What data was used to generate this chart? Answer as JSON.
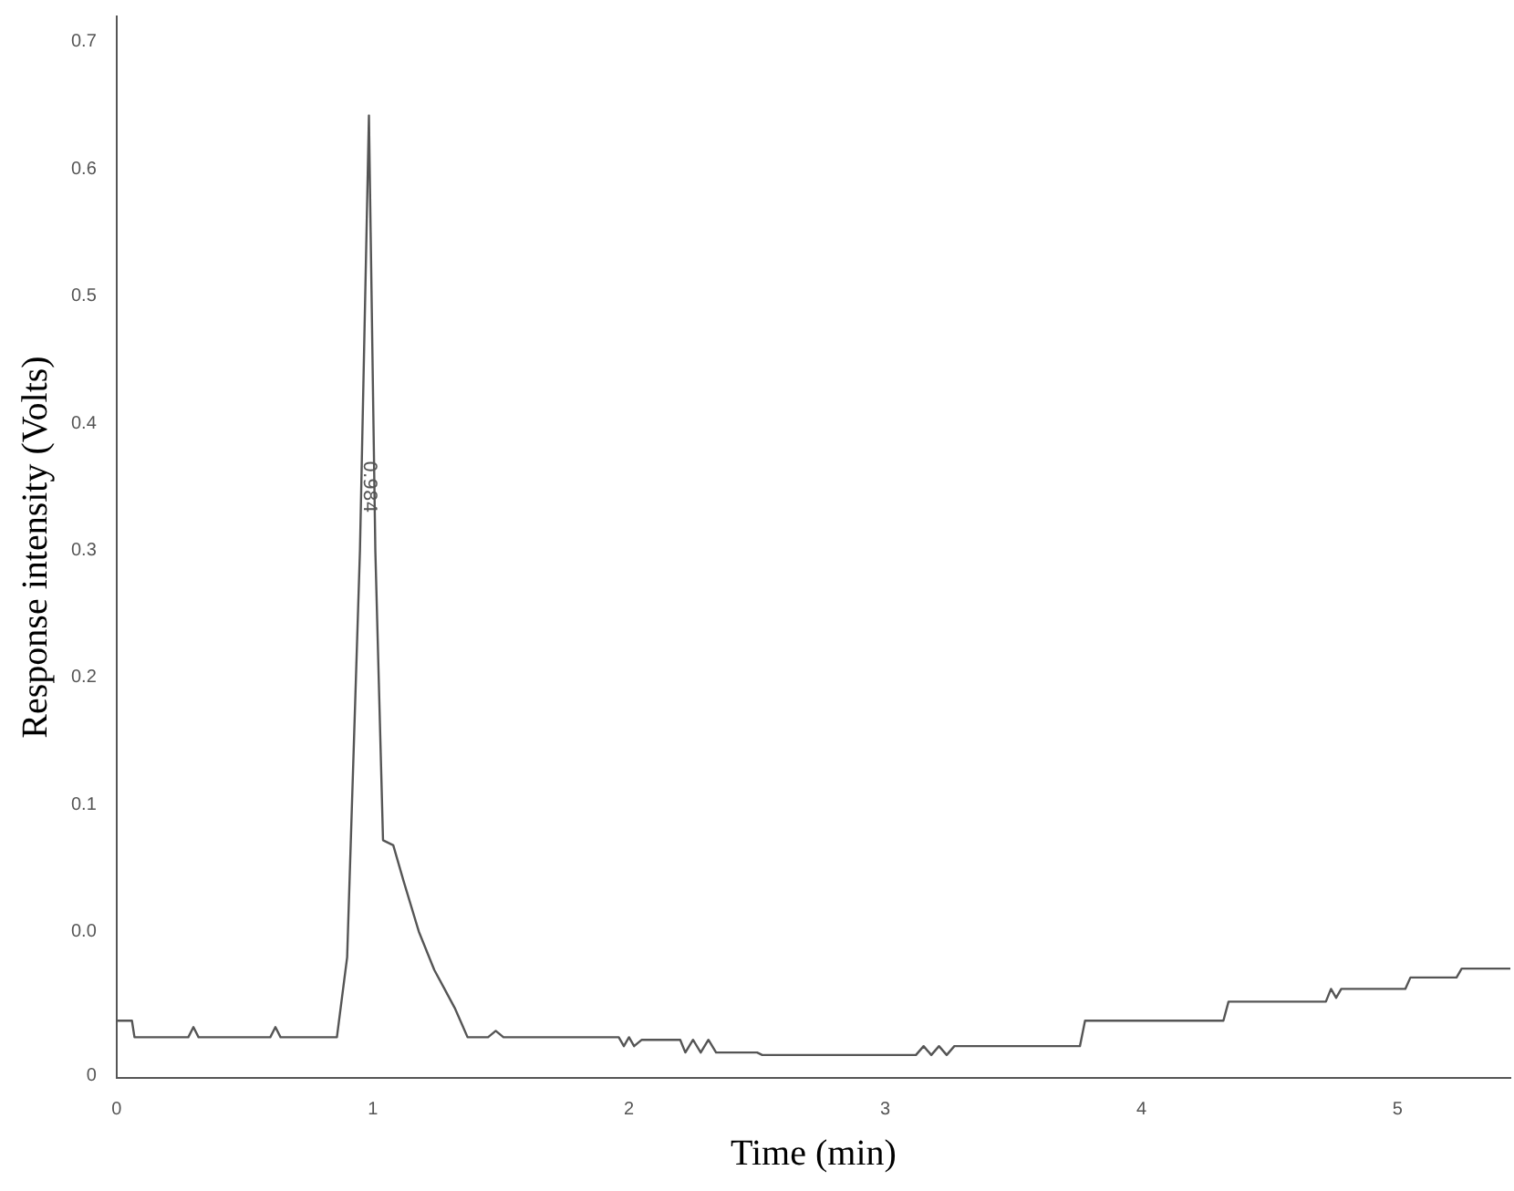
{
  "chart_data": {
    "type": "line",
    "xlabel": "Time (min)",
    "ylabel": "Response intensity (Volts)",
    "x": [
      0,
      0.06,
      0.07,
      0.28,
      0.3,
      0.32,
      0.6,
      0.62,
      0.64,
      0.86,
      0.9,
      0.95,
      0.985,
      1.01,
      1.04,
      1.08,
      1.12,
      1.18,
      1.24,
      1.28,
      1.32,
      1.37,
      1.45,
      1.48,
      1.51,
      1.96,
      1.98,
      2.0,
      2.02,
      2.05,
      2.2,
      2.22,
      2.25,
      2.28,
      2.31,
      2.34,
      2.5,
      2.52,
      3.12,
      3.15,
      3.18,
      3.21,
      3.24,
      3.27,
      3.76,
      3.78,
      4.32,
      4.34,
      4.72,
      4.74,
      4.76,
      4.78,
      5.03,
      5.05,
      5.23,
      5.25,
      5.44
    ],
    "series": [
      {
        "color": "#555555",
        "values": [
          -0.07,
          -0.07,
          -0.083,
          -0.083,
          -0.075,
          -0.083,
          -0.083,
          -0.075,
          -0.083,
          -0.083,
          -0.02,
          0.3,
          0.642,
          0.3,
          0.072,
          0.068,
          0.04,
          0.0,
          -0.03,
          -0.045,
          -0.06,
          -0.083,
          -0.083,
          -0.078,
          -0.083,
          -0.083,
          -0.09,
          -0.083,
          -0.09,
          -0.085,
          -0.085,
          -0.095,
          -0.085,
          -0.095,
          -0.085,
          -0.095,
          -0.095,
          -0.097,
          -0.097,
          -0.09,
          -0.097,
          -0.09,
          -0.097,
          -0.09,
          -0.09,
          -0.07,
          -0.07,
          -0.055,
          -0.055,
          -0.045,
          -0.052,
          -0.045,
          -0.045,
          -0.036,
          -0.036,
          -0.029,
          -0.029
        ]
      }
    ],
    "xlim": [
      0,
      5.44
    ],
    "xticks": [
      0,
      1,
      2,
      3,
      4,
      5
    ],
    "ylim": [
      -0.115,
      0.72
    ],
    "yticks": [
      {
        "value": -0.113,
        "label": "0"
      },
      {
        "value": 0,
        "label": "0.0"
      },
      0.1,
      0.2,
      0.3,
      0.4,
      0.5,
      0.6,
      0.7
    ],
    "annotations": [
      {
        "text": "0.984",
        "x": 0.985,
        "y": 0.35
      }
    ],
    "grid": false,
    "legend": false,
    "marker": "none",
    "line_style": "solid"
  }
}
